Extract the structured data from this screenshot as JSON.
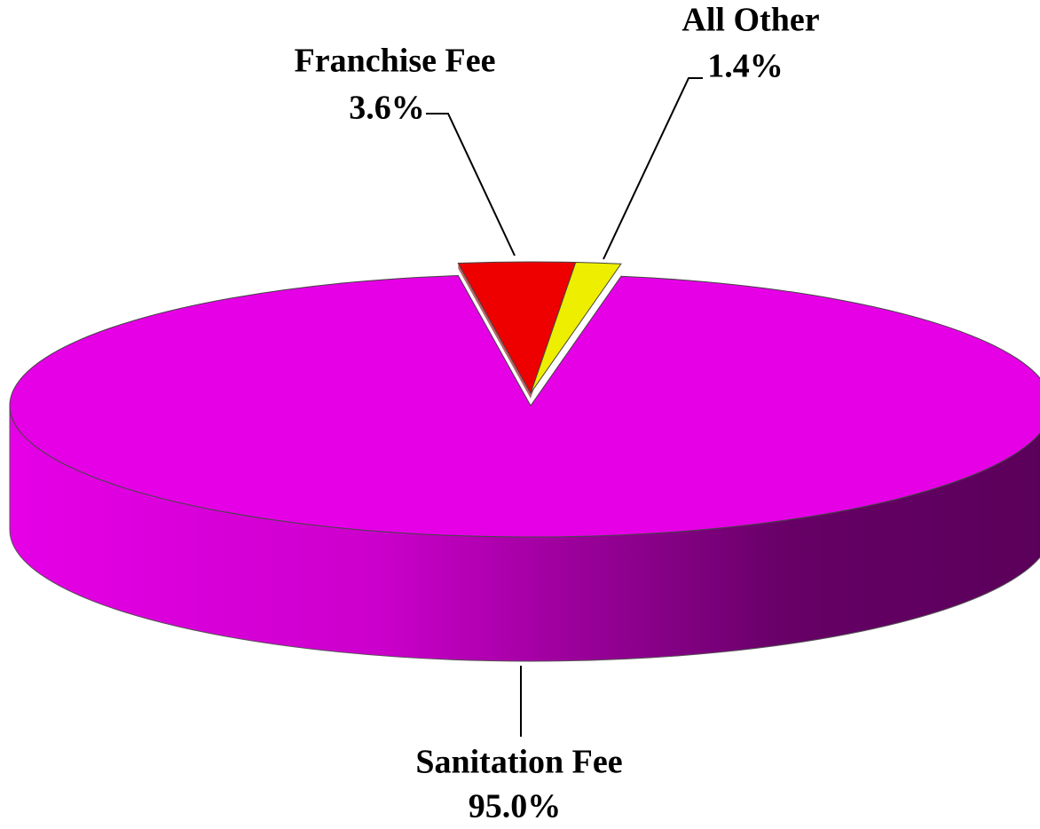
{
  "chart_data": {
    "type": "pie",
    "categories": [
      "Franchise Fee",
      "All Other",
      "Sanitation Fee"
    ],
    "values": [
      3.6,
      1.4,
      95.0
    ],
    "value_labels": [
      "3.6%",
      "1.4%",
      "95.0%"
    ],
    "colors": [
      "#ee0000",
      "#eeee00",
      "#e600e6"
    ]
  }
}
